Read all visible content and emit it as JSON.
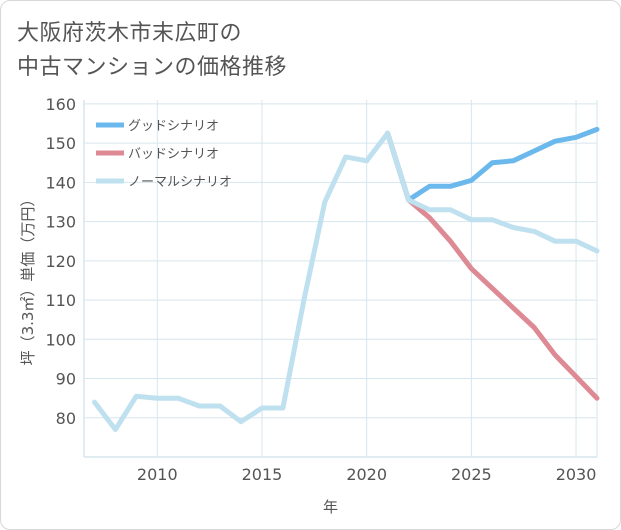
{
  "title_lines": [
    "大阪府茨木市末広町の",
    "中古マンションの価格推移"
  ],
  "colors": {
    "good": "#6bb8ec",
    "bad": "#de8a95",
    "normal": "#bfe0ef",
    "grid": "#d6e6ee",
    "axis": "#555555"
  },
  "chart_data": {
    "type": "line",
    "title": "大阪府茨木市末広町の中古マンションの価格推移",
    "xlabel": "年",
    "ylabel": "坪（3.3㎡）単価（万円）",
    "xlim": [
      2006.5,
      2031
    ],
    "ylim": [
      70,
      161
    ],
    "xticks": [
      2010,
      2015,
      2020,
      2025,
      2030
    ],
    "yticks": [
      80,
      90,
      100,
      110,
      120,
      130,
      140,
      150,
      160
    ],
    "legend_position": "top-left",
    "series": [
      {
        "key": "good",
        "name": "グッドシナリオ",
        "x": [
          2021,
          2022,
          2023,
          2024,
          2025,
          2026,
          2027,
          2028,
          2029,
          2030,
          2031
        ],
        "values": [
          152.5,
          135.5,
          139,
          139,
          140.5,
          145,
          145.5,
          148,
          150.5,
          151.5,
          153.5
        ]
      },
      {
        "key": "bad",
        "name": "バッドシナリオ",
        "x": [
          2021,
          2022,
          2023,
          2024,
          2025,
          2026,
          2027,
          2028,
          2029,
          2030,
          2031
        ],
        "values": [
          152.5,
          135.5,
          131,
          125,
          118,
          113,
          108,
          103,
          96,
          90.5,
          85
        ]
      },
      {
        "key": "normal",
        "name": "ノーマルシナリオ",
        "x": [
          2007,
          2008,
          2009,
          2010,
          2011,
          2012,
          2013,
          2014,
          2015,
          2016,
          2017,
          2018,
          2019,
          2020,
          2021,
          2022,
          2023,
          2024,
          2025,
          2026,
          2027,
          2028,
          2029,
          2030,
          2031
        ],
        "values": [
          84,
          77,
          85.5,
          85,
          85,
          83,
          83,
          79,
          82.5,
          82.5,
          110,
          135,
          146.5,
          145.5,
          152.5,
          135.5,
          133,
          133,
          130.5,
          130.5,
          128.5,
          127.5,
          125,
          125,
          122.5
        ]
      }
    ]
  }
}
